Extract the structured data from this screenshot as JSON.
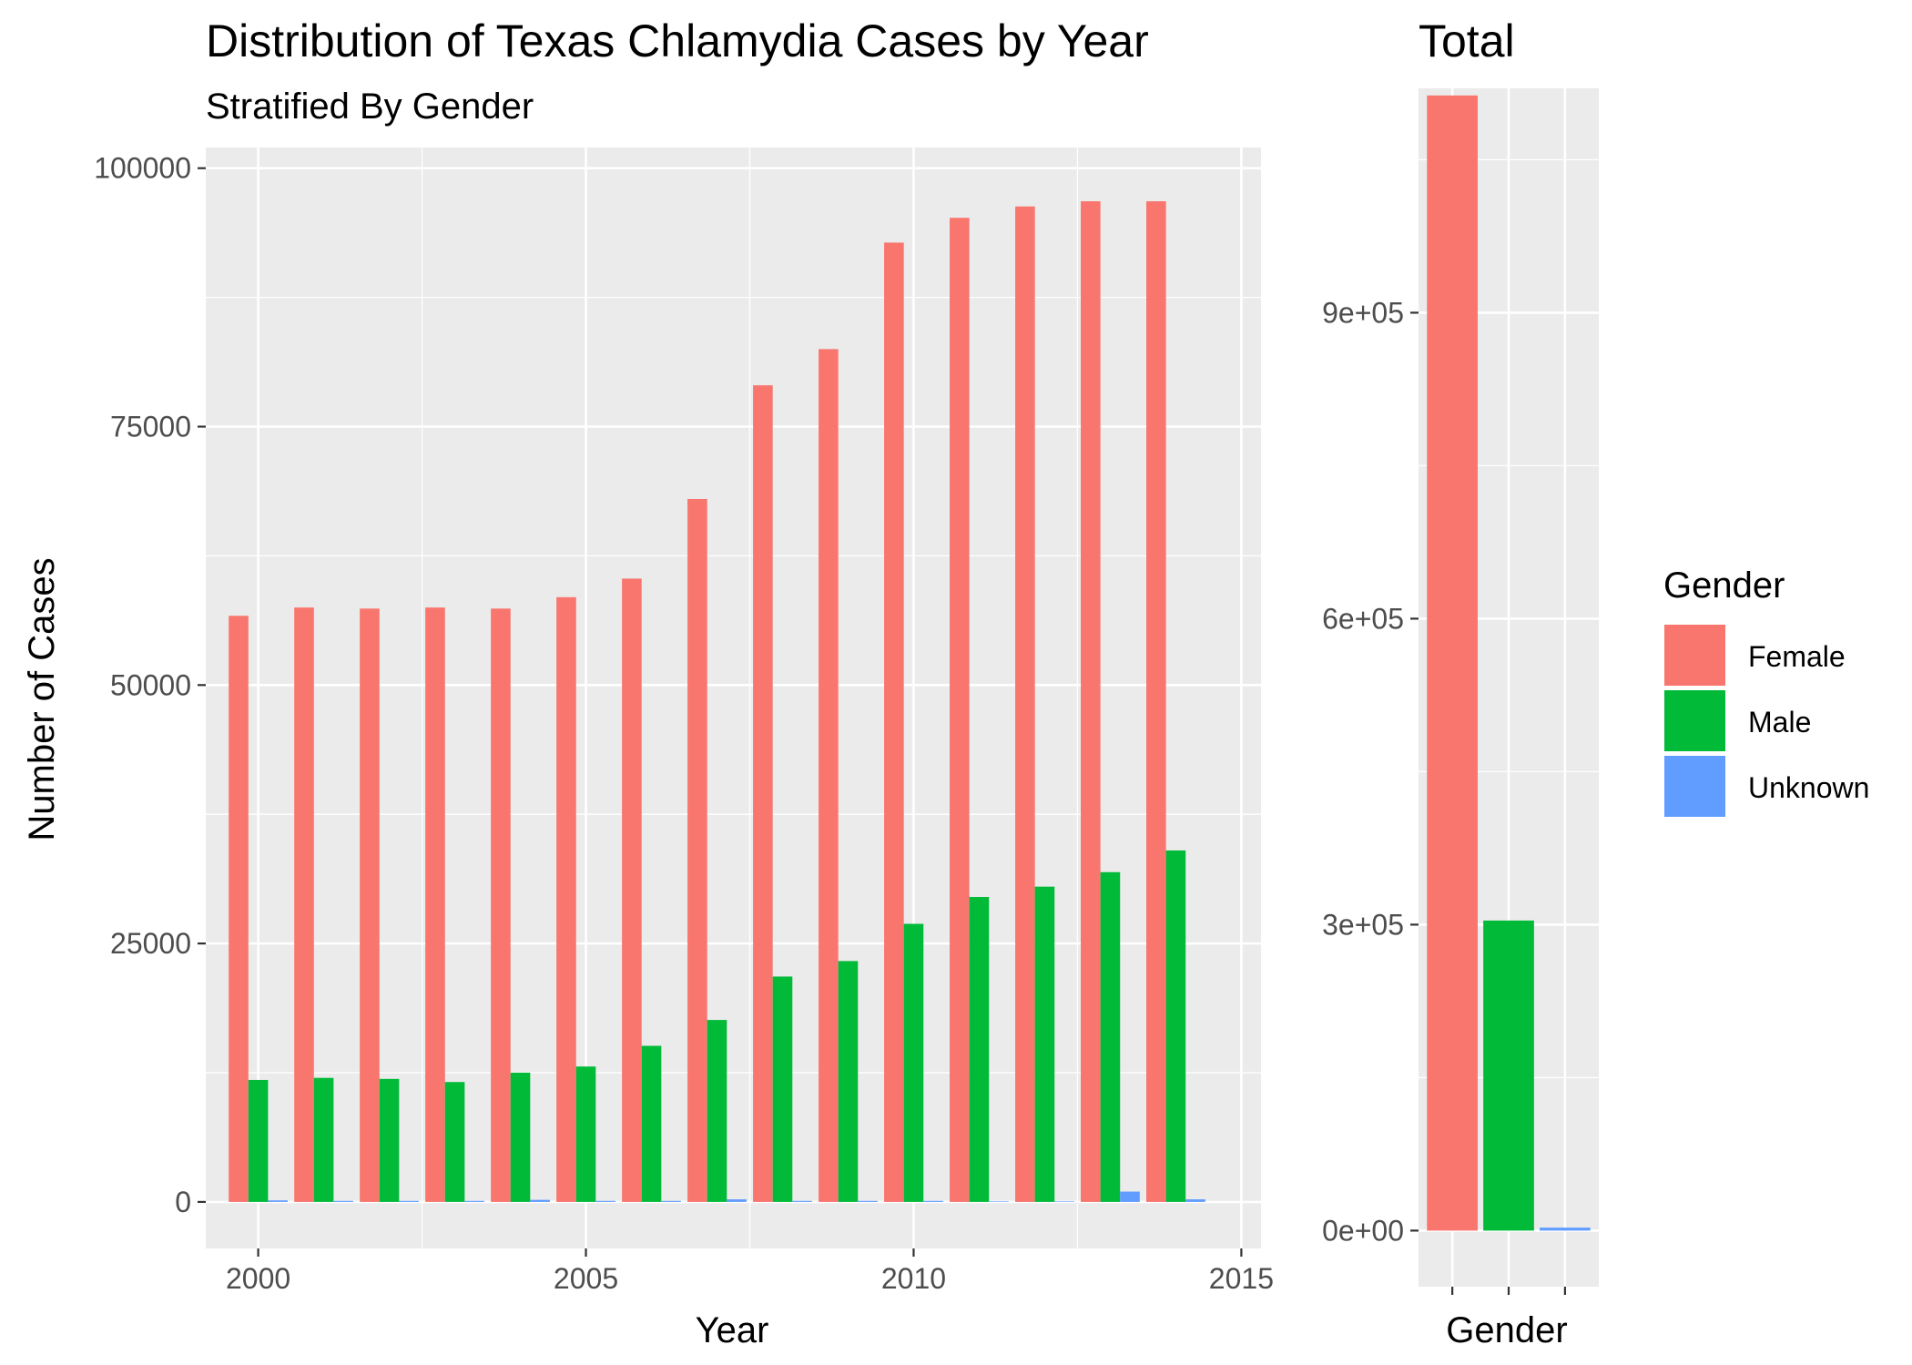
{
  "chart_data": [
    {
      "type": "bar",
      "title": "Distribution of Texas Chlamydia Cases by Year",
      "subtitle": "Stratified By Gender",
      "xlabel": "Year",
      "ylabel": "Number of Cases",
      "xlim": [
        1999.2,
        2015.3
      ],
      "ylim": [
        -4500,
        102000
      ],
      "x_ticks": [
        2000,
        2005,
        2010,
        2015
      ],
      "y_ticks": [
        0,
        25000,
        50000,
        75000,
        100000
      ],
      "y_tick_labels": [
        "0",
        "25000",
        "50000",
        "75000",
        "100000"
      ],
      "grid": true,
      "categories": [
        2000,
        2001,
        2002,
        2003,
        2004,
        2005,
        2006,
        2007,
        2008,
        2009,
        2010,
        2011,
        2012,
        2013,
        2014
      ],
      "series": [
        {
          "name": "Female",
          "values": [
            56700,
            57500,
            57400,
            57500,
            57400,
            58500,
            60300,
            68000,
            79000,
            82500,
            92800,
            95200,
            96300,
            96800,
            96800
          ]
        },
        {
          "name": "Male",
          "values": [
            11800,
            12000,
            11900,
            11600,
            12500,
            13100,
            15100,
            17600,
            21800,
            23300,
            26900,
            29500,
            30500,
            31900,
            34000
          ]
        },
        {
          "name": "Unknown",
          "values": [
            150,
            100,
            100,
            100,
            200,
            100,
            100,
            250,
            100,
            100,
            100,
            50,
            50,
            1000,
            250
          ]
        }
      ]
    },
    {
      "type": "bar",
      "title": "Total",
      "xlabel": "Gender",
      "ylabel": "",
      "ylim": [
        -55000,
        1120000
      ],
      "y_ticks": [
        0,
        300000,
        600000,
        900000
      ],
      "y_tick_labels": [
        "0e+00",
        "3e+05",
        "6e+05",
        "9e+05"
      ],
      "grid": true,
      "categories": [
        "Female",
        "Male",
        "Unknown"
      ],
      "values": [
        1113000,
        304000,
        2900
      ]
    }
  ],
  "legend": {
    "title": "Gender",
    "placement": "right",
    "items": [
      {
        "label": "Female",
        "color": "#F8766D"
      },
      {
        "label": "Male",
        "color": "#00BA38"
      },
      {
        "label": "Unknown",
        "color": "#619CFF"
      }
    ]
  },
  "colors": {
    "panel_background": "#EBEBEB",
    "grid": "#FFFFFF",
    "tick_text": "#4D4D4D",
    "tick_mark": "#333333"
  }
}
